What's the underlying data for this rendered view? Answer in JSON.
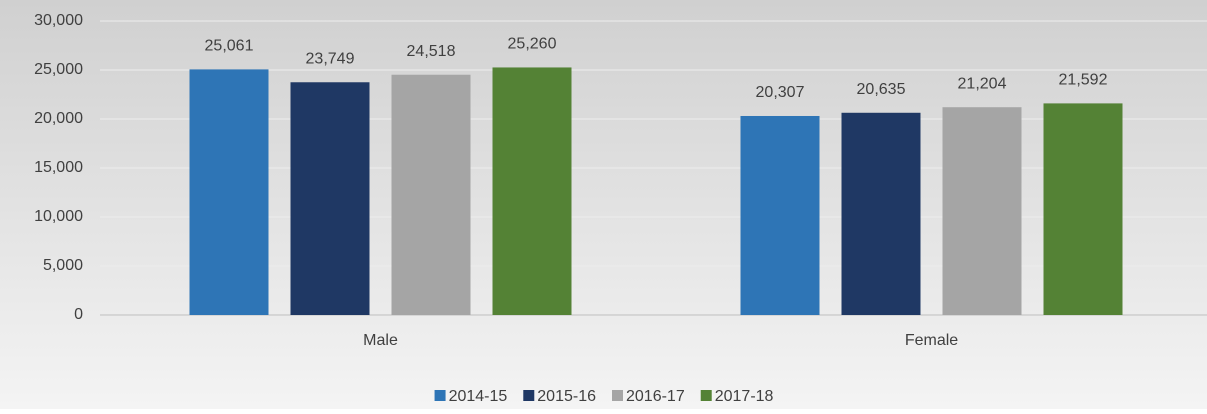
{
  "chart_data": {
    "type": "bar",
    "categories": [
      "Male",
      "Female"
    ],
    "series": [
      {
        "name": "2014-15",
        "color": "#2e75b6",
        "values": [
          25061,
          20307
        ],
        "value_labels": [
          "25,061",
          "20,307"
        ]
      },
      {
        "name": "2015-16",
        "color": "#1f3864",
        "values": [
          23749,
          20635
        ],
        "value_labels": [
          "23,749",
          "20,635"
        ]
      },
      {
        "name": "2016-17",
        "color": "#a5a5a5",
        "values": [
          24518,
          21204
        ],
        "value_labels": [
          "24,518",
          "21,204"
        ]
      },
      {
        "name": "2017-18",
        "color": "#548235",
        "values": [
          25260,
          21592
        ],
        "value_labels": [
          "25,260",
          "21,592"
        ]
      }
    ],
    "ylim": [
      0,
      30000
    ],
    "yticks": [
      0,
      {
        "value": 5000,
        "label": "5,000"
      },
      {
        "value": 10000,
        "label": "10,000"
      },
      {
        "value": 15000,
        "label": "15,000"
      },
      {
        "value": 20000,
        "label": "20,000"
      },
      {
        "value": 25000,
        "label": "25,000"
      },
      {
        "value": 30000,
        "label": "30,000"
      }
    ],
    "grid": true,
    "legend": "bottom"
  }
}
